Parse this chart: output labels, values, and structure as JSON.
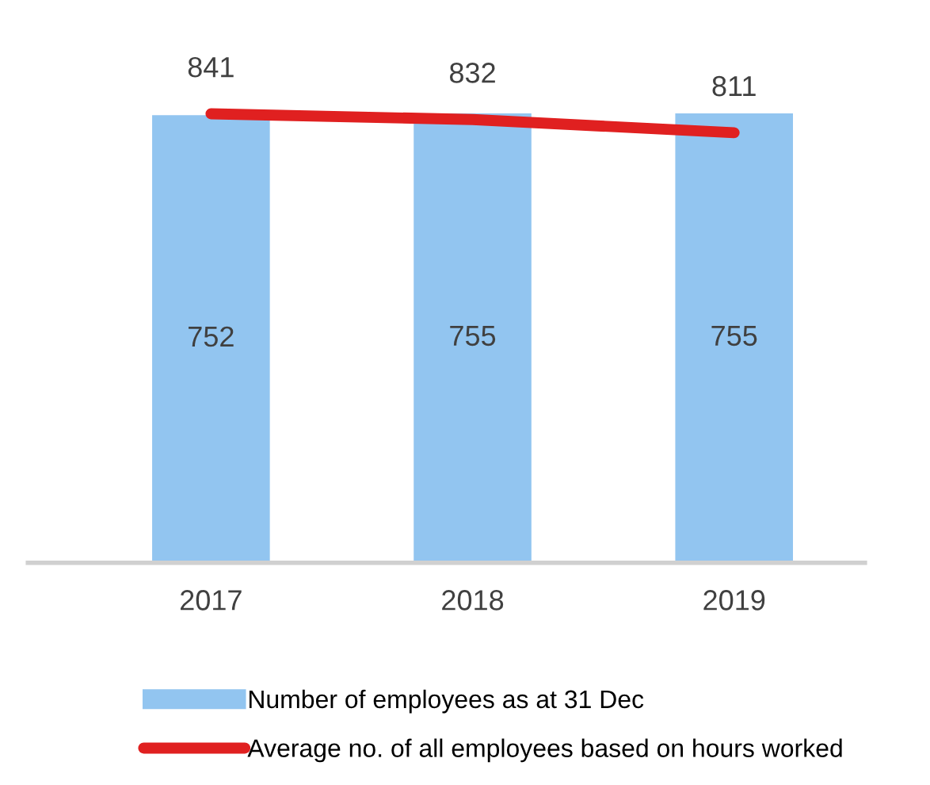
{
  "chart_data": {
    "type": "bar",
    "categories": [
      "2017",
      "2018",
      "2019"
    ],
    "series": [
      {
        "name": "Number of employees as at 31 Dec",
        "color": "#92c5f0",
        "values": [
          752,
          755,
          755
        ]
      },
      {
        "name": "Average no. of all employees based on hours worked",
        "type": "line",
        "axis": "y2",
        "color": "#e02020",
        "values": [
          841,
          832,
          811
        ]
      }
    ],
    "data_labels": true,
    "tick_labels": "x",
    "legend": "bottom",
    "grid": false,
    "marker": "none",
    "line_style": "solid"
  }
}
